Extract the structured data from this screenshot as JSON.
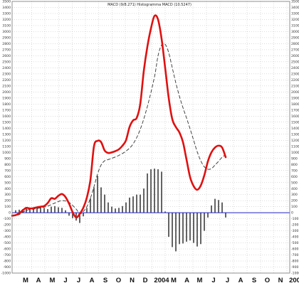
{
  "chart_data": {
    "type": "line",
    "title": "MACD (9/8.271) Histogramma MACD (10.5247)",
    "colors": {
      "macd": "#e01010",
      "signal": "#333333",
      "histogram": "#222222",
      "zero_line": "#2020c8",
      "grid": "#aaaaaa"
    },
    "grid": true,
    "y_axis": {
      "ylim": [
        -1000,
        3500
      ],
      "ticks": [
        3500,
        3400,
        3300,
        3200,
        3100,
        3000,
        2900,
        2800,
        2700,
        2600,
        2500,
        2400,
        2300,
        2200,
        2100,
        2000,
        1900,
        1800,
        1700,
        1600,
        1500,
        1400,
        1300,
        1200,
        1100,
        1000,
        900,
        800,
        700,
        600,
        500,
        400,
        300,
        200,
        100,
        0,
        -100,
        -200,
        -300,
        -400,
        -500,
        -600,
        -700,
        -800,
        -900,
        -1000
      ]
    },
    "x_axis": {
      "xlim": [
        0,
        78
      ],
      "month_labels": [
        {
          "label": "M",
          "x": 3.8
        },
        {
          "label": "A",
          "x": 7.4
        },
        {
          "label": "M",
          "x": 11.3
        },
        {
          "label": "J",
          "x": 15.0
        },
        {
          "label": "J",
          "x": 18.7
        },
        {
          "label": "A",
          "x": 22.4
        },
        {
          "label": "S",
          "x": 26.2
        },
        {
          "label": "O",
          "x": 29.9
        },
        {
          "label": "N",
          "x": 33.7
        },
        {
          "label": "D",
          "x": 37.4
        },
        {
          "label": "2004",
          "x": 42.0
        },
        {
          "label": "M",
          "x": 45.4
        },
        {
          "label": "A",
          "x": 49.1
        },
        {
          "label": "M",
          "x": 52.7
        },
        {
          "label": "J",
          "x": 56.6
        },
        {
          "label": "J",
          "x": 60.5
        },
        {
          "label": "A",
          "x": 64.2
        },
        {
          "label": "S",
          "x": 68.0
        },
        {
          "label": "O",
          "x": 71.7
        },
        {
          "label": "N",
          "x": 75.4
        },
        {
          "label": "200",
          "x": 79.4
        }
      ],
      "grid_lines": [
        5.5,
        9.2,
        13.1,
        16.9,
        20.6,
        24.3,
        28.1,
        31.8,
        35.6,
        39.3,
        43.0,
        47.0,
        50.8,
        54.6,
        58.4,
        62.2,
        66.0,
        69.8,
        73.5,
        77.2
      ]
    },
    "series": [
      {
        "values": [
          [
            0,
            -50
          ],
          [
            1,
            -40
          ],
          [
            2,
            -10
          ],
          [
            3,
            40
          ],
          [
            4,
            80
          ],
          [
            5,
            70
          ],
          [
            6,
            75
          ],
          [
            7,
            90
          ],
          [
            8,
            100
          ],
          [
            9,
            110
          ],
          [
            10,
            160
          ],
          [
            11,
            240
          ],
          [
            12,
            230
          ],
          [
            13,
            280
          ],
          [
            14,
            310
          ],
          [
            15,
            260
          ],
          [
            16,
            150
          ],
          [
            17,
            10
          ],
          [
            18,
            -80
          ],
          [
            19,
            -20
          ],
          [
            20,
            80
          ],
          [
            21,
            250
          ],
          [
            22,
            540
          ],
          [
            23,
            1100
          ],
          [
            24,
            1190
          ],
          [
            25,
            1170
          ],
          [
            26,
            1030
          ],
          [
            27,
            990
          ],
          [
            28,
            1000
          ],
          [
            29,
            1020
          ],
          [
            30,
            1050
          ],
          [
            31,
            1110
          ],
          [
            32,
            1200
          ],
          [
            33,
            1420
          ],
          [
            34,
            1530
          ],
          [
            35,
            1570
          ],
          [
            36,
            1800
          ],
          [
            37,
            2350
          ],
          [
            38,
            2750
          ],
          [
            39,
            3050
          ],
          [
            40,
            3260
          ],
          [
            41,
            3200
          ],
          [
            42,
            2880
          ],
          [
            43,
            2400
          ],
          [
            44,
            1900
          ],
          [
            45,
            1550
          ],
          [
            46,
            1420
          ],
          [
            47,
            1330
          ],
          [
            48,
            1170
          ],
          [
            49,
            880
          ],
          [
            50,
            590
          ],
          [
            51,
            440
          ],
          [
            52,
            380
          ],
          [
            53,
            450
          ],
          [
            54,
            620
          ],
          [
            55,
            850
          ],
          [
            56,
            1000
          ],
          [
            57,
            1080
          ],
          [
            58,
            1110
          ],
          [
            59,
            1080
          ],
          [
            60,
            920
          ]
        ]
      },
      {
        "values": [
          [
            0,
            -60
          ],
          [
            2,
            -30
          ],
          [
            4,
            40
          ],
          [
            6,
            60
          ],
          [
            8,
            80
          ],
          [
            10,
            110
          ],
          [
            12,
            160
          ],
          [
            14,
            200
          ],
          [
            16,
            170
          ],
          [
            18,
            60
          ],
          [
            19,
            -20
          ],
          [
            20,
            20
          ],
          [
            21,
            100
          ],
          [
            22,
            240
          ],
          [
            23,
            430
          ],
          [
            24,
            640
          ],
          [
            25,
            790
          ],
          [
            26,
            860
          ],
          [
            27,
            880
          ],
          [
            28,
            900
          ],
          [
            30,
            950
          ],
          [
            32,
            1020
          ],
          [
            34,
            1140
          ],
          [
            36,
            1380
          ],
          [
            38,
            1760
          ],
          [
            40,
            2250
          ],
          [
            41,
            2600
          ],
          [
            42,
            2780
          ],
          [
            43,
            2790
          ],
          [
            44,
            2650
          ],
          [
            45,
            2400
          ],
          [
            46,
            2150
          ],
          [
            47,
            1930
          ],
          [
            48,
            1740
          ],
          [
            49,
            1570
          ],
          [
            50,
            1390
          ],
          [
            51,
            1200
          ],
          [
            52,
            1010
          ],
          [
            53,
            860
          ],
          [
            54,
            760
          ],
          [
            55,
            720
          ],
          [
            56,
            730
          ],
          [
            57,
            790
          ],
          [
            58,
            850
          ],
          [
            59,
            920
          ],
          [
            60,
            960
          ]
        ]
      },
      {
        "type": "bar",
        "x": [
          1,
          2,
          3,
          4,
          5,
          6,
          7,
          8,
          9,
          10,
          11,
          12,
          13,
          14,
          15,
          16,
          17,
          18,
          19,
          20,
          21,
          22,
          23,
          24,
          25,
          26,
          27,
          28,
          29,
          30,
          31,
          32,
          33,
          34,
          35,
          36,
          37,
          38,
          39,
          40,
          41,
          42,
          43,
          44,
          45,
          46,
          47,
          48,
          49,
          50,
          51,
          52,
          53,
          54,
          55,
          56,
          57,
          58,
          59,
          60
        ],
        "values": [
          40,
          50,
          60,
          80,
          70,
          60,
          90,
          90,
          80,
          60,
          100,
          110,
          90,
          80,
          40,
          -50,
          -90,
          -130,
          -170,
          -60,
          80,
          240,
          420,
          610,
          420,
          300,
          170,
          100,
          70,
          80,
          110,
          170,
          250,
          270,
          300,
          300,
          400,
          650,
          720,
          730,
          720,
          680,
          20,
          -400,
          -570,
          -640,
          -520,
          -510,
          -480,
          -460,
          -500,
          -560,
          -520,
          -300,
          -80,
          120,
          230,
          210,
          170,
          -80
        ]
      }
    ]
  }
}
